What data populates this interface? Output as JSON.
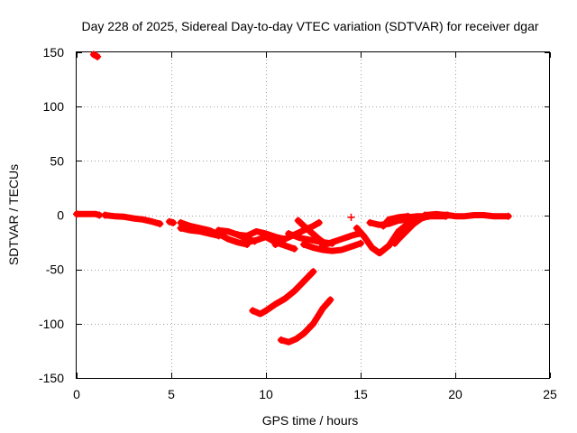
{
  "chart_data": {
    "type": "scatter",
    "title": "Day 228 of 2025, Sidereal Day-to-day VTEC variation (SDTVAR) for receiver dgar",
    "xlabel": "GPS time / hours",
    "ylabel": "SDTVAR / TECUs",
    "xlim": [
      0,
      25
    ],
    "ylim": [
      -150,
      150
    ],
    "xticks": [
      0,
      5,
      10,
      15,
      20,
      25
    ],
    "yticks": [
      -150,
      -100,
      -50,
      0,
      50,
      100,
      150
    ],
    "xtick_labels": [
      "0",
      "5",
      "10",
      "15",
      "20",
      "25"
    ],
    "ytick_labels": [
      "-150",
      "-100",
      "-50",
      "0",
      "50",
      "100",
      "150"
    ],
    "grid": true,
    "marker": "+",
    "color": "#ff0000",
    "series": [
      {
        "name": "arc-01",
        "points": [
          [
            0.9,
            148
          ],
          [
            1.0,
            147
          ],
          [
            1.1,
            146
          ]
        ]
      },
      {
        "name": "arc-02",
        "points": [
          [
            0.0,
            1
          ],
          [
            0.5,
            1
          ],
          [
            1.0,
            1
          ],
          [
            1.2,
            0
          ]
        ]
      },
      {
        "name": "arc-03",
        "points": [
          [
            1.5,
            0
          ],
          [
            2.0,
            -1
          ],
          [
            2.5,
            -1.5
          ],
          [
            3.0,
            -3
          ],
          [
            3.5,
            -4
          ],
          [
            4.0,
            -6
          ],
          [
            4.4,
            -8
          ]
        ]
      },
      {
        "name": "arc-04",
        "points": [
          [
            4.9,
            -6
          ],
          [
            5.1,
            -7
          ]
        ]
      },
      {
        "name": "arc-05",
        "points": [
          [
            5.5,
            -7
          ],
          [
            6.0,
            -10
          ],
          [
            6.5,
            -12
          ],
          [
            7.0,
            -14
          ],
          [
            7.4,
            -17
          ]
        ]
      },
      {
        "name": "arc-06",
        "points": [
          [
            5.5,
            -12
          ],
          [
            6.0,
            -14
          ],
          [
            6.5,
            -15
          ],
          [
            7.0,
            -17
          ],
          [
            7.5,
            -19
          ]
        ]
      },
      {
        "name": "arc-07",
        "points": [
          [
            7.5,
            -14
          ],
          [
            8.0,
            -15
          ],
          [
            8.5,
            -18
          ],
          [
            9.0,
            -22
          ],
          [
            9.4,
            -24
          ]
        ]
      },
      {
        "name": "arc-08",
        "points": [
          [
            7.6,
            -18
          ],
          [
            8.0,
            -22
          ],
          [
            8.5,
            -25
          ],
          [
            9.0,
            -27
          ]
        ]
      },
      {
        "name": "arc-09",
        "points": [
          [
            8.5,
            -18
          ],
          [
            9.0,
            -19
          ],
          [
            9.5,
            -15
          ],
          [
            10.0,
            -17
          ],
          [
            10.5,
            -20
          ],
          [
            11.0,
            -22
          ]
        ]
      },
      {
        "name": "arc-10",
        "points": [
          [
            9.0,
            -25
          ],
          [
            9.5,
            -23
          ],
          [
            10.0,
            -20
          ],
          [
            10.5,
            -25
          ],
          [
            11.0,
            -28
          ],
          [
            11.5,
            -31
          ]
        ]
      },
      {
        "name": "arc-11",
        "points": [
          [
            10.5,
            -27
          ],
          [
            11.0,
            -22
          ],
          [
            11.5,
            -18
          ],
          [
            12.0,
            -14
          ],
          [
            12.5,
            -10
          ],
          [
            12.8,
            -7
          ]
        ]
      },
      {
        "name": "arc-12",
        "points": [
          [
            11.7,
            -5
          ],
          [
            12.0,
            -10
          ],
          [
            12.4,
            -16
          ],
          [
            12.8,
            -22
          ],
          [
            13.1,
            -26
          ]
        ]
      },
      {
        "name": "arc-13",
        "points": [
          [
            11.2,
            -17
          ],
          [
            11.8,
            -21
          ],
          [
            12.4,
            -23
          ],
          [
            13.0,
            -25
          ],
          [
            13.5,
            -26
          ]
        ]
      },
      {
        "name": "arc-14",
        "points": [
          [
            12.0,
            -27
          ],
          [
            12.5,
            -30
          ],
          [
            13.0,
            -32
          ],
          [
            13.5,
            -33
          ],
          [
            14.0,
            -32
          ],
          [
            14.5,
            -29
          ],
          [
            15.0,
            -26
          ]
        ]
      },
      {
        "name": "arc-15",
        "points": [
          [
            13.0,
            -28
          ],
          [
            13.5,
            -25
          ],
          [
            14.0,
            -22
          ],
          [
            14.5,
            -19
          ],
          [
            14.9,
            -17
          ]
        ]
      },
      {
        "name": "arc-16",
        "points": [
          [
            14.5,
            -2
          ]
        ]
      },
      {
        "name": "arc-17",
        "points": [
          [
            14.8,
            -12
          ],
          [
            15.2,
            -20
          ],
          [
            15.6,
            -30
          ],
          [
            16.0,
            -35
          ],
          [
            16.5,
            -28
          ],
          [
            17.0,
            -15
          ],
          [
            17.5,
            -8
          ],
          [
            18.0,
            -3
          ]
        ]
      },
      {
        "name": "arc-18",
        "points": [
          [
            15.5,
            -7
          ],
          [
            16.0,
            -9
          ],
          [
            16.5,
            -8
          ],
          [
            17.0,
            -5
          ],
          [
            17.5,
            -4
          ]
        ]
      },
      {
        "name": "arc-19",
        "points": [
          [
            16.2,
            -10
          ],
          [
            16.5,
            -4
          ],
          [
            17.0,
            -2
          ],
          [
            17.5,
            -1
          ]
        ]
      },
      {
        "name": "arc-20",
        "points": [
          [
            16.8,
            -26
          ],
          [
            17.0,
            -22
          ],
          [
            17.4,
            -15
          ],
          [
            17.8,
            -8
          ],
          [
            18.2,
            -3
          ],
          [
            18.6,
            -1
          ]
        ]
      },
      {
        "name": "arc-21",
        "points": [
          [
            17.2,
            -15
          ],
          [
            17.6,
            -10
          ],
          [
            18.0,
            -5
          ]
        ]
      },
      {
        "name": "arc-22",
        "points": [
          [
            17.5,
            -2
          ],
          [
            18.0,
            -1
          ],
          [
            18.5,
            -1
          ],
          [
            19.0,
            -1
          ],
          [
            19.5,
            -1
          ]
        ]
      },
      {
        "name": "arc-23",
        "points": [
          [
            18.4,
            0
          ],
          [
            19.0,
            1
          ],
          [
            19.5,
            0
          ]
        ]
      },
      {
        "name": "arc-24",
        "points": [
          [
            19.6,
            0
          ],
          [
            20.0,
            -1
          ],
          [
            20.5,
            -1
          ],
          [
            21.0,
            0
          ],
          [
            21.5,
            0
          ],
          [
            22.0,
            -1
          ],
          [
            22.5,
            -1
          ],
          [
            22.8,
            -1
          ]
        ]
      },
      {
        "name": "arc-25",
        "points": [
          [
            9.3,
            -88
          ],
          [
            9.7,
            -91
          ],
          [
            10.0,
            -88
          ],
          [
            10.5,
            -82
          ],
          [
            11.0,
            -77
          ],
          [
            11.5,
            -70
          ],
          [
            12.0,
            -61
          ],
          [
            12.5,
            -52
          ]
        ]
      },
      {
        "name": "arc-26",
        "points": [
          [
            10.8,
            -115
          ],
          [
            11.2,
            -117
          ],
          [
            11.6,
            -114
          ],
          [
            12.0,
            -109
          ],
          [
            12.5,
            -100
          ],
          [
            13.0,
            -86
          ],
          [
            13.4,
            -78
          ]
        ]
      }
    ]
  }
}
